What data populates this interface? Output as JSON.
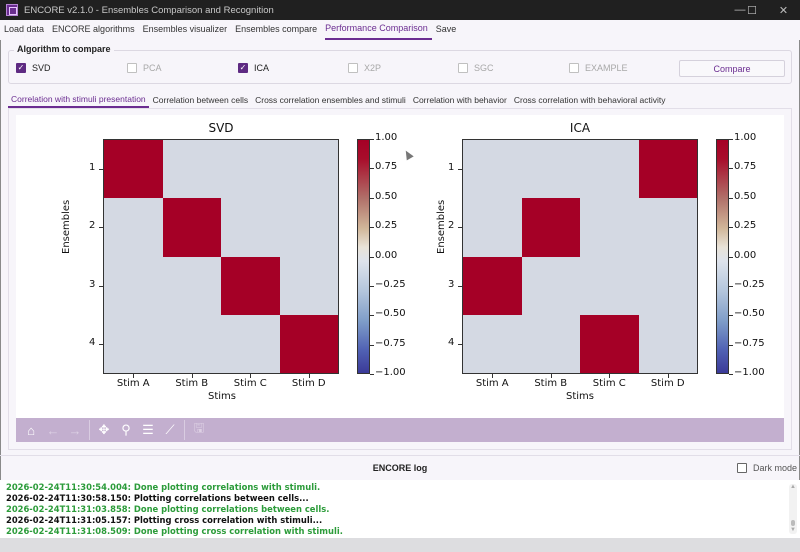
{
  "window": {
    "title": "ENCORE v2.1.0 - Ensembles Comparison and Recognition",
    "controls": {
      "minimize": "—",
      "maximize": "☐",
      "close": "✕"
    }
  },
  "menu": {
    "items": [
      {
        "label": "Load data"
      },
      {
        "label": "ENCORE algorithms"
      },
      {
        "label": "Ensembles visualizer"
      },
      {
        "label": "Ensembles compare"
      },
      {
        "label": "Performance Comparison",
        "active": true
      },
      {
        "label": "Save"
      }
    ]
  },
  "algorithms": {
    "group_title": "Algorithm to compare",
    "options": [
      {
        "label": "SVD",
        "checked": true,
        "enabled": true
      },
      {
        "label": "PCA",
        "checked": false,
        "enabled": false
      },
      {
        "label": "ICA",
        "checked": true,
        "enabled": true
      },
      {
        "label": "X2P",
        "checked": false,
        "enabled": false
      },
      {
        "label": "SGC",
        "checked": false,
        "enabled": false
      },
      {
        "label": "EXAMPLE",
        "checked": false,
        "enabled": false
      }
    ],
    "compare_button": "Compare"
  },
  "tabs": [
    {
      "label": "Correlation with stimuli presentation",
      "active": true
    },
    {
      "label": "Correlation between cells"
    },
    {
      "label": "Cross correlation ensembles and stimuli"
    },
    {
      "label": "Correlation with behavior"
    },
    {
      "label": "Cross correlation with behavioral activity"
    }
  ],
  "colors": {
    "accent": "#6b2d91",
    "toolbar": "#c3afcf",
    "heat_high": "#a50026",
    "heat_zero": "#d4d9e3",
    "log_ok": "#2c9c3a"
  },
  "chart_data": [
    {
      "type": "heatmap",
      "title": "SVD",
      "xlabel": "Stims",
      "ylabel": "Ensembles",
      "x_categories": [
        "Stim A",
        "Stim B",
        "Stim C",
        "Stim D"
      ],
      "y_categories": [
        "1",
        "2",
        "3",
        "4"
      ],
      "values": [
        [
          1,
          0,
          0,
          0
        ],
        [
          0,
          1,
          0,
          0
        ],
        [
          0,
          0,
          1,
          0
        ],
        [
          0,
          0,
          0,
          1
        ]
      ],
      "colorbar": {
        "range": [
          -1.0,
          1.0
        ],
        "ticks": [
          "1.00",
          "0.75",
          "0.50",
          "0.25",
          "0.00",
          "−0.25",
          "−0.50",
          "−0.75",
          "−1.00"
        ],
        "colormap": "coolwarm-reversed (red high, blue low)"
      }
    },
    {
      "type": "heatmap",
      "title": "ICA",
      "xlabel": "Stims",
      "ylabel": "Ensembles",
      "x_categories": [
        "Stim A",
        "Stim B",
        "Stim C",
        "Stim D"
      ],
      "y_categories": [
        "1",
        "2",
        "3",
        "4"
      ],
      "values": [
        [
          0,
          0,
          0,
          1
        ],
        [
          0,
          1,
          0,
          0
        ],
        [
          1,
          0,
          0,
          0
        ],
        [
          0,
          0,
          1,
          0
        ]
      ],
      "colorbar": {
        "range": [
          -1.0,
          1.0
        ],
        "ticks": [
          "1.00",
          "0.75",
          "0.50",
          "0.25",
          "0.00",
          "−0.25",
          "−0.50",
          "−0.75",
          "−1.00"
        ],
        "colormap": "coolwarm-reversed (red high, blue low)"
      }
    }
  ],
  "toolbar": {
    "buttons": [
      {
        "name": "home",
        "glyph": "⌂"
      },
      {
        "name": "back",
        "glyph": "←"
      },
      {
        "name": "forward",
        "glyph": "→"
      },
      {
        "name": "pan",
        "glyph": "✥"
      },
      {
        "name": "zoom",
        "glyph": "⚲"
      },
      {
        "name": "configure-subplots",
        "glyph": "☰"
      },
      {
        "name": "edit-axis",
        "glyph": "⟋"
      },
      {
        "name": "save",
        "glyph": "🖫"
      }
    ]
  },
  "log": {
    "title": "ENCORE log",
    "dark_mode_label": "Dark mode",
    "dark_mode_checked": false,
    "lines": [
      {
        "text": "2026-02-24T11:30:54.004: Done plotting correlations with stimuli.",
        "status": "ok"
      },
      {
        "text": "2026-02-24T11:30:58.150: Plotting correlations between cells...",
        "status": "info"
      },
      {
        "text": "2026-02-24T11:31:03.858: Done plotting correlations between cells.",
        "status": "ok"
      },
      {
        "text": "2026-02-24T11:31:05.157: Plotting cross correlation with stimuli...",
        "status": "info"
      },
      {
        "text": "2026-02-24T11:31:08.509: Done plotting cross correlation with stimuli.",
        "status": "ok"
      }
    ]
  }
}
